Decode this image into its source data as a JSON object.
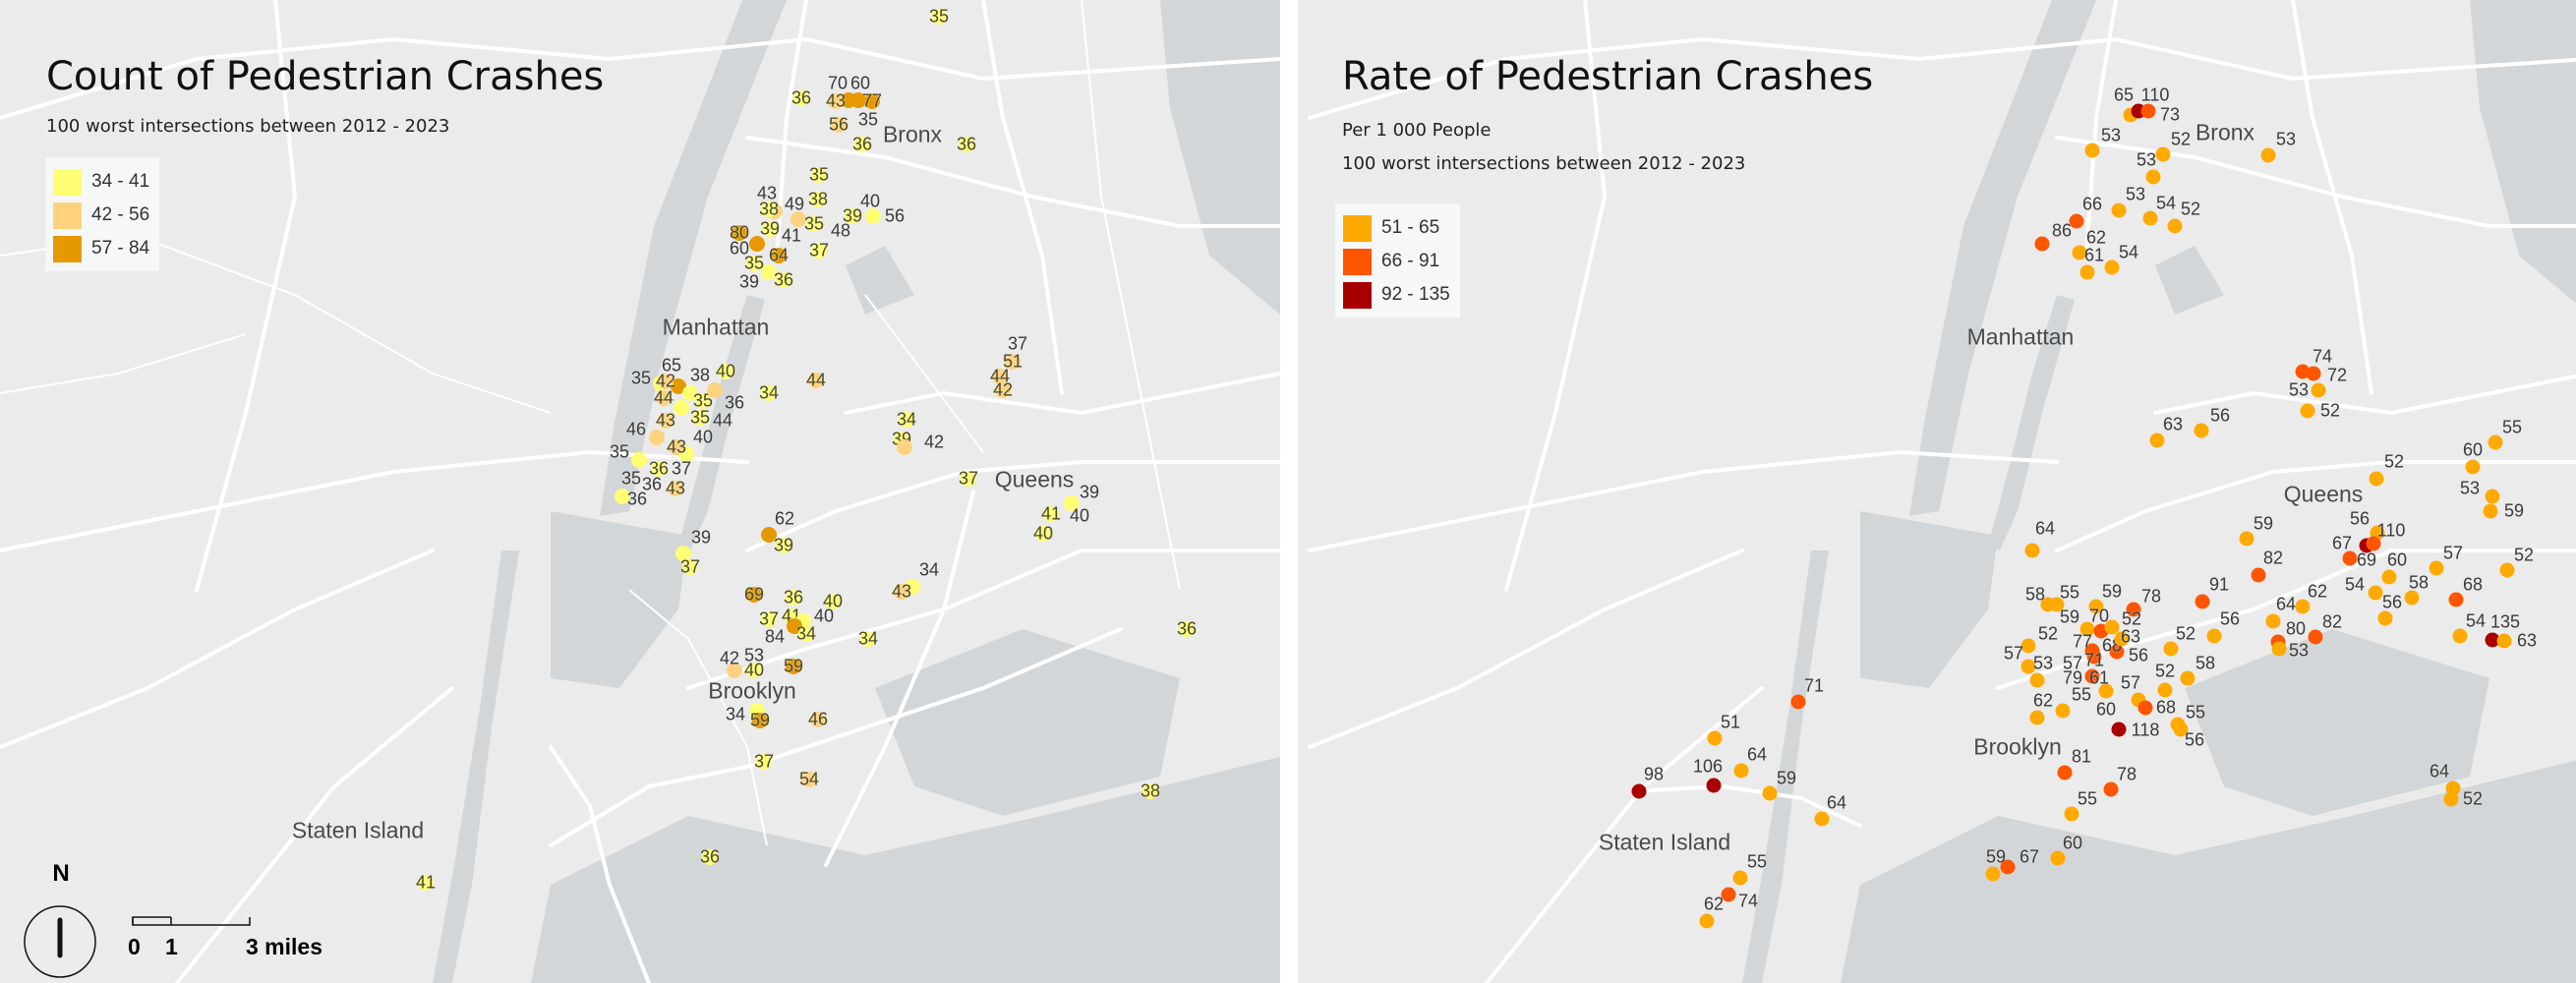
{
  "left_map": {
    "title": "Count of Pedestrian Crashes",
    "subtitle": "100 worst intersections between 2012 - 2023",
    "legend": [
      {
        "label": "34 - 41",
        "min": 34,
        "max": 41,
        "color": "#ffff73"
      },
      {
        "label": "42 - 56",
        "min": 42,
        "max": 56,
        "color": "#ffd27f"
      },
      {
        "label": "57 - 84",
        "min": 57,
        "max": 84,
        "color": "#e69800"
      }
    ],
    "boroughs": [
      "Bronx",
      "Manhattan",
      "Queens",
      "Brooklyn",
      "Staten Island"
    ],
    "points": [
      "36",
      "70",
      "43",
      "60",
      "77",
      "35",
      "56",
      "36",
      "36",
      "35",
      "43",
      "38",
      "38",
      "49",
      "35",
      "41",
      "48",
      "39",
      "40",
      "56",
      "37",
      "80",
      "39",
      "60",
      "64",
      "35",
      "39",
      "36",
      "65",
      "35",
      "42",
      "38",
      "40",
      "44",
      "35",
      "36",
      "35",
      "44",
      "43",
      "46",
      "40",
      "43",
      "35",
      "36",
      "37",
      "35",
      "36",
      "43",
      "36",
      "44",
      "34",
      "62",
      "39",
      "39",
      "37",
      "69",
      "36",
      "40",
      "37",
      "41",
      "40",
      "84",
      "34",
      "34",
      "43",
      "34",
      "42",
      "53",
      "40",
      "59",
      "34",
      "59",
      "46",
      "37",
      "54",
      "37",
      "51",
      "44",
      "42",
      "34",
      "39",
      "42",
      "37",
      "39",
      "41",
      "40",
      "40",
      "36",
      "38",
      "36",
      "41",
      "35"
    ],
    "north_label": "N",
    "scale": {
      "zero": "0",
      "one": "1",
      "three": "3 miles"
    }
  },
  "right_map": {
    "title": "Rate of Pedestrian Crashes",
    "subtitle_1": "Per 1 000 People",
    "subtitle_2": "100 worst intersections between 2012 - 2023",
    "legend": [
      {
        "label": "51 - 65",
        "min": 51,
        "max": 65,
        "color": "#ffaa00"
      },
      {
        "label": "66 - 91",
        "min": 66,
        "max": 91,
        "color": "#ff5500"
      },
      {
        "label": "92 - 135",
        "min": 92,
        "max": 135,
        "color": "#a80000"
      }
    ],
    "boroughs": [
      "Bronx",
      "Manhattan",
      "Queens",
      "Brooklyn",
      "Staten Island"
    ],
    "points": [
      "65",
      "110",
      "73",
      "53",
      "52",
      "53",
      "53",
      "53",
      "54",
      "52",
      "66",
      "86",
      "62",
      "61",
      "54",
      "74",
      "72",
      "53",
      "52",
      "63",
      "56",
      "55",
      "60",
      "52",
      "53",
      "59",
      "56",
      "110",
      "67",
      "69",
      "59",
      "82",
      "60",
      "57",
      "52",
      "54",
      "58",
      "68",
      "56",
      "62",
      "64",
      "80",
      "82",
      "53",
      "54",
      "135",
      "63",
      "58",
      "55",
      "59",
      "78",
      "59",
      "70",
      "52",
      "77",
      "68",
      "63",
      "56",
      "52",
      "57",
      "53",
      "57",
      "71",
      "79",
      "61",
      "55",
      "62",
      "57",
      "60",
      "68",
      "52",
      "52",
      "56",
      "58",
      "55",
      "56",
      "118",
      "91",
      "81",
      "78",
      "55",
      "60",
      "59",
      "67",
      "64",
      "52",
      "64",
      "71",
      "51",
      "64",
      "106",
      "98",
      "59",
      "64",
      "55",
      "74",
      "62"
    ]
  }
}
